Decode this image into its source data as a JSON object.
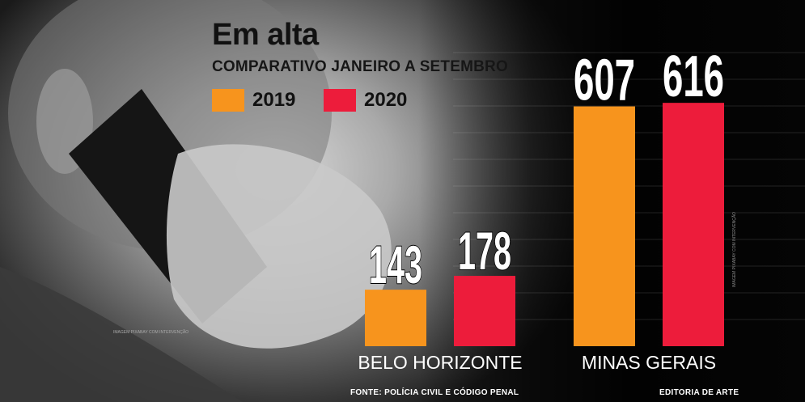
{
  "title": "Em alta",
  "subtitle": "COMPARATIVO JANEIRO A SETEMBRO",
  "legend": [
    {
      "label": "2019",
      "color": "#f7941d"
    },
    {
      "label": "2020",
      "color": "#ed1c3b"
    }
  ],
  "footer": {
    "source": "FONTE: POLÍCIA CIVIL E CÓDIGO PENAL",
    "credit": "EDITORIA DE ARTE"
  },
  "photo_credit": "IMAGEM PIXABAY COM INTERVENÇÃO",
  "photo_credit_vertical": "IMAGEM PIXABAY COM INTERVENÇÃO",
  "colors": {
    "series_2019": "#f7941d",
    "series_2020": "#ed1c3b",
    "label_text": "#ffffff"
  },
  "chart_data": {
    "type": "bar",
    "title": "Em alta",
    "subtitle": "COMPARATIVO JANEIRO A SETEMBRO",
    "categories": [
      "BELO HORIZONTE",
      "MINAS GERAIS"
    ],
    "series": [
      {
        "name": "2019",
        "values": [
          143,
          607
        ]
      },
      {
        "name": "2020",
        "values": [
          178,
          616
        ]
      }
    ],
    "legend": "top-left",
    "grid": true
  }
}
